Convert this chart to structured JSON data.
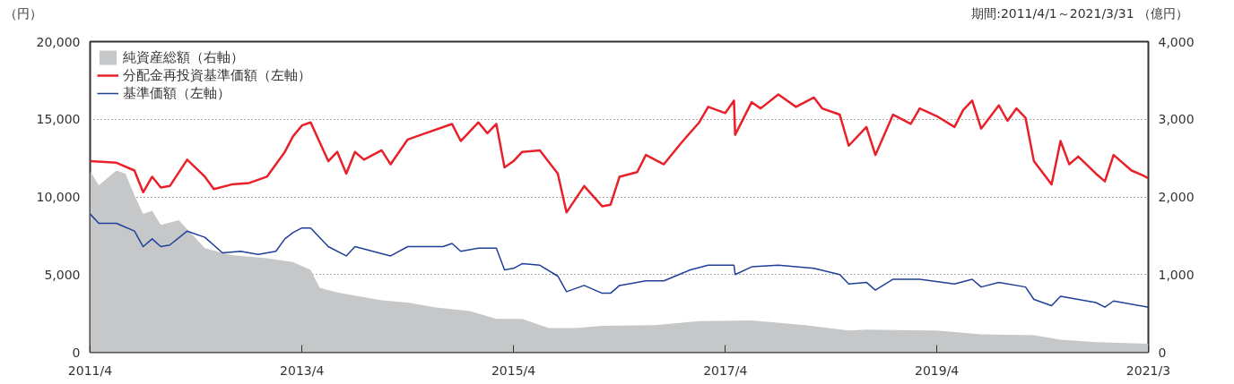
{
  "chart_data": {
    "type": "line",
    "ylabel": "（円）",
    "y2label": "（億円）",
    "annotations": [
      "期間:2011/4/1～2021/3/31"
    ],
    "xlim": [
      "2011-04-01",
      "2021-03-31"
    ],
    "xticks": [
      {
        "value": "2011-04-01",
        "label": "2011/4"
      },
      {
        "value": "2013-04-01",
        "label": "2013/4"
      },
      {
        "value": "2015-04-01",
        "label": "2015/4"
      },
      {
        "value": "2017-04-01",
        "label": "2017/4"
      },
      {
        "value": "2019-04-01",
        "label": "2019/4"
      },
      {
        "value": "2021-03-31",
        "label": "2021/3"
      }
    ],
    "ylim": [
      0,
      20000
    ],
    "yticks": [
      {
        "value": 0,
        "label": "0"
      },
      {
        "value": 5000,
        "label": "5,000"
      },
      {
        "value": 10000,
        "label": "10,000"
      },
      {
        "value": 15000,
        "label": "15,000"
      },
      {
        "value": 20000,
        "label": "20,000"
      }
    ],
    "y2lim": [
      0,
      4000
    ],
    "y2ticks": [
      {
        "value": 0,
        "label": "0"
      },
      {
        "value": 1000,
        "label": "1,000"
      },
      {
        "value": 2000,
        "label": "2,000"
      },
      {
        "value": 3000,
        "label": "3,000"
      },
      {
        "value": 4000,
        "label": "4,000"
      }
    ],
    "grid": "y",
    "legend": "top left",
    "series": [
      {
        "name": "純資産総額（右軸）",
        "type": "area",
        "axis": "y2",
        "color": "#c6c7c9",
        "x": [
          "2011-04-01",
          "2011-05-01",
          "2011-07-01",
          "2011-08-01",
          "2011-09-01",
          "2011-10-01",
          "2011-11-01",
          "2011-12-01",
          "2012-02-01",
          "2012-05-01",
          "2012-08-01",
          "2012-12-01",
          "2013-03-01",
          "2013-05-01",
          "2013-06-01",
          "2013-08-01",
          "2014-01-01",
          "2014-04-01",
          "2014-07-01",
          "2014-11-01",
          "2015-02-01",
          "2015-05-01",
          "2015-08-01",
          "2015-11-01",
          "2016-02-01",
          "2016-08-01",
          "2017-01-01",
          "2017-07-01",
          "2018-01-01",
          "2018-06-01",
          "2018-08-01",
          "2019-04-01",
          "2019-09-01",
          "2020-03-01",
          "2020-06-01",
          "2020-10-01",
          "2021-03-31"
        ],
        "values": [
          2330,
          2150,
          2340,
          2300,
          2020,
          1780,
          1820,
          1640,
          1700,
          1340,
          1250,
          1210,
          1160,
          1060,
          830,
          770,
          670,
          640,
          580,
          530,
          430,
          430,
          310,
          310,
          340,
          350,
          400,
          410,
          350,
          280,
          290,
          280,
          230,
          220,
          160,
          130,
          110
        ]
      },
      {
        "name": "分配金再投資基準価額（左軸）",
        "color": "#e8202a",
        "x": [
          "2011-04-01",
          "2011-07-01",
          "2011-09-01",
          "2011-10-01",
          "2011-11-01",
          "2011-12-01",
          "2012-01-01",
          "2012-03-01",
          "2012-05-01",
          "2012-06-01",
          "2012-08-01",
          "2012-10-01",
          "2012-12-01",
          "2013-02-01",
          "2013-03-01",
          "2013-04-01",
          "2013-05-01",
          "2013-07-01",
          "2013-08-01",
          "2013-09-01",
          "2013-10-01",
          "2013-11-01",
          "2014-01-01",
          "2014-02-01",
          "2014-04-01",
          "2014-06-01",
          "2014-09-01",
          "2014-10-01",
          "2014-12-01",
          "2015-01-01",
          "2015-02-01",
          "2015-03-01",
          "2015-04-01",
          "2015-05-01",
          "2015-07-01",
          "2015-09-01",
          "2015-10-01",
          "2015-12-01",
          "2016-02-01",
          "2016-03-01",
          "2016-04-01",
          "2016-06-01",
          "2016-07-01",
          "2016-09-01",
          "2016-11-01",
          "2017-01-01",
          "2017-02-01",
          "2017-04-01",
          "2017-05-01",
          "2017-05-05",
          "2017-07-01",
          "2017-08-01",
          "2017-10-01",
          "2017-12-01",
          "2018-02-01",
          "2018-03-01",
          "2018-05-01",
          "2018-06-01",
          "2018-08-01",
          "2018-09-01",
          "2018-11-01",
          "2019-01-01",
          "2019-02-01",
          "2019-04-01",
          "2019-06-01",
          "2019-07-01",
          "2019-08-01",
          "2019-09-01",
          "2019-11-01",
          "2019-12-01",
          "2020-01-01",
          "2020-02-01",
          "2020-03-01",
          "2020-05-01",
          "2020-06-01",
          "2020-07-01",
          "2020-08-01",
          "2020-10-01",
          "2020-11-01",
          "2020-12-01",
          "2021-02-01",
          "2021-03-10",
          "2021-03-31"
        ],
        "values": [
          12300,
          12200,
          11700,
          10300,
          11300,
          10600,
          10700,
          12400,
          11300,
          10500,
          10800,
          10900,
          11300,
          12900,
          13900,
          14600,
          14800,
          12300,
          12900,
          11500,
          12900,
          12400,
          13000,
          12100,
          13700,
          14100,
          14700,
          13600,
          14800,
          14100,
          14700,
          11900,
          12300,
          12900,
          13000,
          11500,
          9000,
          10700,
          9400,
          9500,
          11300,
          11600,
          12700,
          12100,
          13500,
          14800,
          15800,
          15400,
          16200,
          14000,
          16100,
          15700,
          16600,
          15800,
          16400,
          15700,
          15300,
          13300,
          14500,
          12700,
          15300,
          14700,
          15700,
          15200,
          14500,
          15600,
          16200,
          14400,
          15900,
          14900,
          15700,
          15100,
          12300,
          10800,
          13600,
          12100,
          12600,
          11500,
          11000,
          12700,
          11700,
          11400,
          11200
        ]
      },
      {
        "name": "基準価額（左軸）",
        "color": "#1f3f9a",
        "x": [
          "2011-04-01",
          "2011-05-01",
          "2011-07-01",
          "2011-09-01",
          "2011-10-01",
          "2011-11-01",
          "2011-12-01",
          "2012-01-01",
          "2012-03-01",
          "2012-05-01",
          "2012-07-01",
          "2012-09-01",
          "2012-11-01",
          "2013-01-01",
          "2013-02-01",
          "2013-03-01",
          "2013-04-01",
          "2013-05-01",
          "2013-07-01",
          "2013-09-01",
          "2013-10-01",
          "2014-02-01",
          "2014-04-01",
          "2014-08-01",
          "2014-09-01",
          "2014-10-01",
          "2014-12-01",
          "2015-02-01",
          "2015-03-01",
          "2015-04-01",
          "2015-05-01",
          "2015-07-01",
          "2015-09-01",
          "2015-10-01",
          "2015-12-01",
          "2016-02-01",
          "2016-03-01",
          "2016-04-01",
          "2016-07-01",
          "2016-09-01",
          "2016-12-01",
          "2017-02-01",
          "2017-05-01",
          "2017-05-05",
          "2017-07-01",
          "2017-10-01",
          "2018-02-01",
          "2018-05-01",
          "2018-06-01",
          "2018-08-01",
          "2018-09-01",
          "2018-11-01",
          "2019-02-01",
          "2019-06-01",
          "2019-08-01",
          "2019-09-01",
          "2019-11-01",
          "2020-02-01",
          "2020-03-01",
          "2020-05-01",
          "2020-06-01",
          "2020-10-01",
          "2020-11-01",
          "2020-12-01",
          "2021-03-31"
        ],
        "values": [
          8900,
          8300,
          8300,
          7800,
          6800,
          7300,
          6800,
          6900,
          7800,
          7400,
          6400,
          6500,
          6300,
          6500,
          7300,
          7700,
          8000,
          8000,
          6800,
          6200,
          6800,
          6200,
          6800,
          6800,
          7000,
          6500,
          6700,
          6700,
          5300,
          5400,
          5700,
          5600,
          4900,
          3900,
          4300,
          3800,
          3800,
          4300,
          4600,
          4600,
          5300,
          5600,
          5600,
          5000,
          5500,
          5600,
          5400,
          5000,
          4400,
          4500,
          4000,
          4700,
          4700,
          4400,
          4700,
          4200,
          4500,
          4200,
          3400,
          3000,
          3600,
          3200,
          2900,
          3300,
          2900
        ]
      }
    ]
  }
}
